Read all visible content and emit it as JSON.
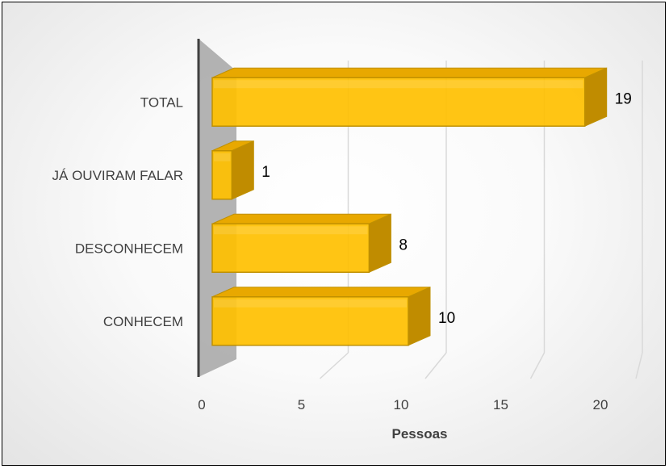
{
  "chart_data": {
    "type": "bar",
    "orientation": "horizontal",
    "style": "3d",
    "categories": [
      "TOTAL",
      "JÁ OUVIRAM FALAR",
      "DESCONHECEM",
      "CONHECEM"
    ],
    "values": [
      19,
      1,
      8,
      10
    ],
    "data_labels": [
      "19",
      "1",
      "8",
      "10"
    ],
    "title": "",
    "xlabel": "Pessoas",
    "ylabel": "",
    "xlim": [
      0,
      20
    ],
    "x_ticks": [
      "0",
      "5",
      "10",
      "15",
      "20"
    ],
    "grid": true,
    "legend": "none",
    "colors": {
      "bar_front": "#FFC000",
      "bar_top": "#E8A800",
      "bar_side": "#C08C00",
      "bar_edge": "#BF9000",
      "wall": "#A6A6A6",
      "axis": "#404040",
      "grid": "#D9D9D9"
    }
  }
}
